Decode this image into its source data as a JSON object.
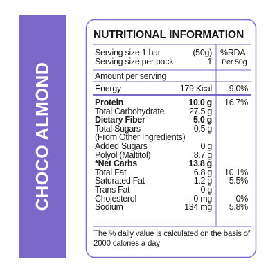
{
  "side_label": "CHOCO ALMOND",
  "title": "NUTRITIONAL INFORMATION",
  "serving": [
    {
      "label": "Serving size 1 bar",
      "value": "(50g)"
    },
    {
      "label": "Serving size per pack",
      "value": "1"
    }
  ],
  "rda_header": [
    "%RDA",
    "Per 50g"
  ],
  "amount_header": "Amount per serving",
  "energy": {
    "label": "Energy",
    "value": "179 Kcal",
    "rda": "9.0%"
  },
  "nutrients": [
    {
      "label": "Protein",
      "value": "10.0 g",
      "rda": "16.7%"
    },
    {
      "label": "Total Carbohydrate",
      "value": "27.5 g"
    },
    {
      "label": "Dietary Fiber",
      "value": "5.0 g"
    },
    {
      "label": "Total Sugars",
      "value": "0.5 g"
    },
    {
      "label": "(From Other Ingredients)"
    },
    {
      "label": "Added Sugars",
      "value": "0 g"
    },
    {
      "label": "Polyol (Maltitol)",
      "value": "8.7 g"
    },
    {
      "label": "*Net Carbs",
      "value": "13.8 g"
    },
    {
      "label": "Total Fat",
      "value": "6.8 g",
      "rda": "10.1%"
    },
    {
      "label": "Saturated Fat",
      "value": "1.2 g",
      "rda": "5.5%"
    },
    {
      "label": "Trans Fat",
      "value": "0 g"
    },
    {
      "label": "Cholesterol",
      "value": "0 mg",
      "rda": "0%"
    },
    {
      "label": "Sodium",
      "value": "134 mg",
      "rda": "5.8%"
    }
  ],
  "footnote": "The % daily value is calculated on the basis of 2000 calories a day"
}
